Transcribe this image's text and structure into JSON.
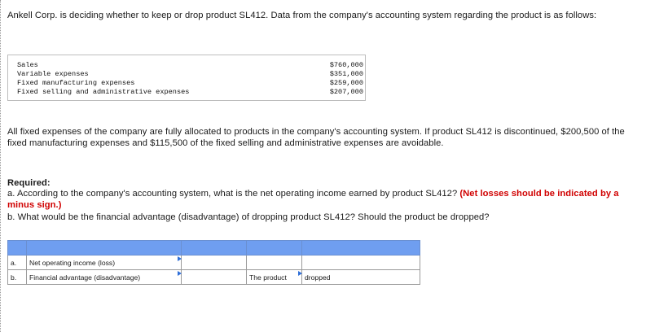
{
  "intro": "Ankell Corp. is deciding whether to keep or drop product SL412. Data from the company's accounting system regarding the product is as follows:",
  "data_table": [
    {
      "label": "Sales",
      "value": "$760,000"
    },
    {
      "label": "Variable expenses",
      "value": "$351,000"
    },
    {
      "label": "Fixed manufacturing expenses",
      "value": "$259,000"
    },
    {
      "label": "Fixed selling and administrative expenses",
      "value": "$207,000"
    }
  ],
  "all_fixed": "All fixed expenses of the company are fully allocated to products in the company's accounting system. If product SL412 is discontinued, $200,500 of the fixed manufacturing expenses and $115,500 of the fixed selling and administrative expenses are avoidable.",
  "required": {
    "title": "Required:",
    "a_text": "a. According to the company's accounting system, what is the net operating income earned by product SL412?",
    "a_note": "(Net losses should be indicated by a minus sign.)",
    "b_text": "b. What would be the financial advantage (disadvantage) of dropping product SL412? Should the product be dropped?"
  },
  "answer_table": {
    "rows": [
      {
        "key": "a.",
        "label": "Net operating income (loss)",
        "cells": [
          "",
          "",
          ""
        ]
      },
      {
        "key": "b.",
        "label": "Financial advantage (disadvantage)",
        "cells": [
          "",
          "The product",
          "dropped"
        ]
      }
    ]
  },
  "colors": {
    "header_blue": "#6f9ef0",
    "note_red": "#d00000",
    "dropdown_marker": "#2f6fd8"
  }
}
